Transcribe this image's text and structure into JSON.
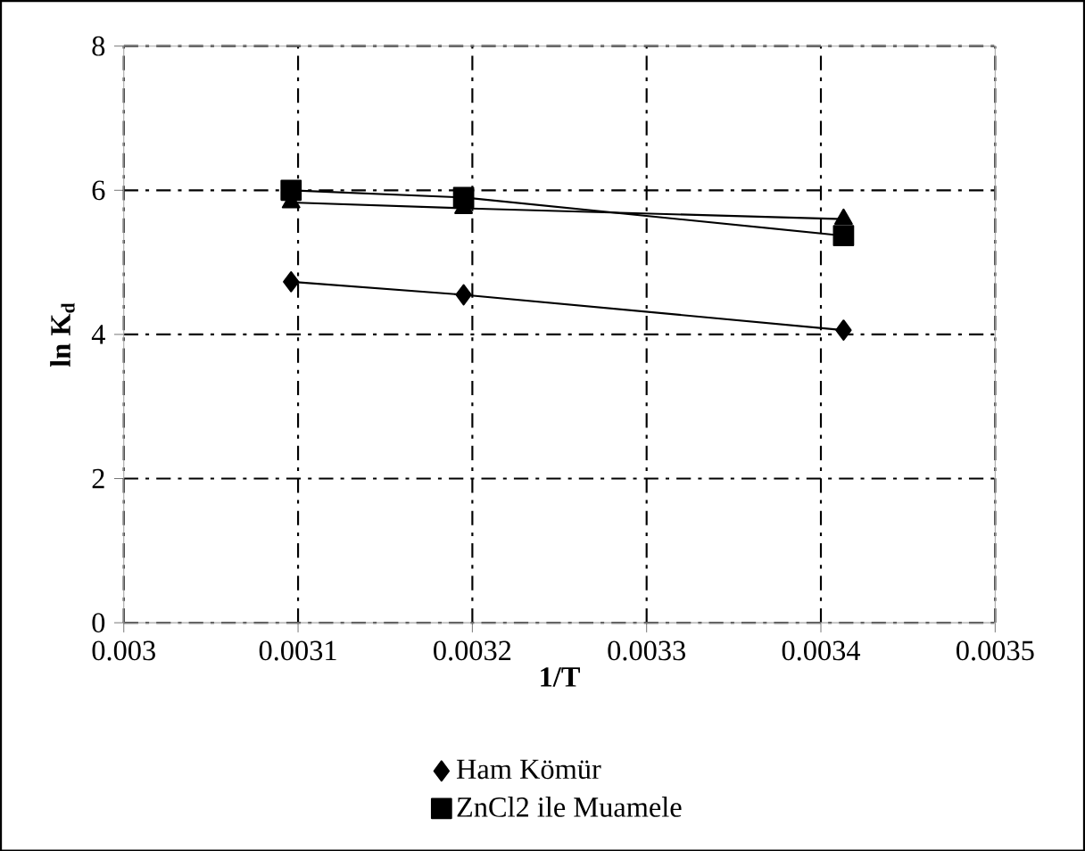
{
  "chart_data": {
    "type": "line",
    "xlabel": "1/T",
    "ylabel": "ln K$_{d}$",
    "xlim": [
      0.003,
      0.0035
    ],
    "xticks": [
      0.003,
      0.0031,
      0.0032,
      0.0033,
      0.0034,
      0.0035
    ],
    "ylim": [
      0,
      8
    ],
    "yticks": [
      0,
      2,
      4,
      6,
      8
    ],
    "grid": true,
    "legend": "bottom",
    "series": [
      {
        "name": "Ham Kömür",
        "color": "#000000",
        "marker": "diamond",
        "x": [
          0.003096,
          0.003195,
          0.003413
        ],
        "values": [
          4.73,
          4.55,
          4.06
        ]
      },
      {
        "name": "ZnCl2 ile Muamele",
        "color": "#000000",
        "marker": "square",
        "x": [
          0.003096,
          0.003195,
          0.003413
        ],
        "values": [
          6.0,
          5.9,
          5.37
        ]
      },
      {
        "color": "#000000",
        "marker": "triangle",
        "x": [
          0.003096,
          0.003195,
          0.003413
        ],
        "values": [
          5.83,
          5.75,
          5.6
        ]
      }
    ]
  }
}
